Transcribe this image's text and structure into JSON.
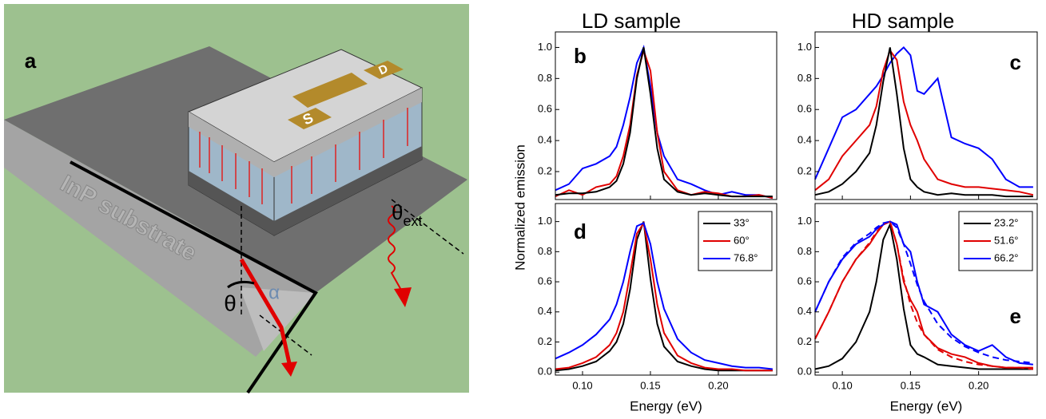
{
  "figure": {
    "column_titles": [
      "LD sample",
      "HD sample"
    ],
    "ylabel": "Normalized emission",
    "illustration": {
      "label": "a",
      "substrate": "InP substrate",
      "theta": "θ",
      "alpha": "α",
      "theta_ext": "θ",
      "theta_ext_sub": "ext",
      "pad_s": "S",
      "pad_d": "D"
    }
  },
  "chart_data": [
    {
      "type": "line",
      "label": "b",
      "xlim": [
        0.08,
        0.243
      ],
      "ylim": [
        0.02,
        1.1
      ],
      "xtick_labels": false,
      "xticks": [
        0.1,
        0.15,
        0.2
      ],
      "yticks": [
        0.2,
        0.4,
        0.6,
        0.8,
        {
          "value": 1,
          "label": "1.0"
        }
      ],
      "x": [
        0.08,
        0.09,
        0.1,
        0.11,
        0.12,
        0.125,
        0.13,
        0.135,
        0.14,
        0.145,
        0.15,
        0.155,
        0.16,
        0.17,
        0.18,
        0.19,
        0.2,
        0.21,
        0.22,
        0.23,
        0.24
      ],
      "series": [
        {
          "color": "#0000ff",
          "values": [
            0.08,
            0.12,
            0.22,
            0.25,
            0.3,
            0.36,
            0.5,
            0.68,
            0.9,
            1.0,
            0.75,
            0.45,
            0.3,
            0.15,
            0.12,
            0.08,
            0.05,
            0.07,
            0.05,
            0.05,
            0.03
          ]
        },
        {
          "color": "#e00000",
          "values": [
            0.04,
            0.08,
            0.05,
            0.1,
            0.12,
            0.17,
            0.3,
            0.5,
            0.82,
            0.98,
            0.85,
            0.45,
            0.2,
            0.08,
            0.05,
            0.07,
            0.06,
            0.04,
            0.04,
            0.05,
            0.03
          ]
        },
        {
          "color": "#000000",
          "values": [
            0.05,
            0.06,
            0.06,
            0.07,
            0.1,
            0.14,
            0.25,
            0.45,
            0.8,
            1.0,
            0.7,
            0.35,
            0.15,
            0.07,
            0.05,
            0.06,
            0.05,
            0.04,
            0.04,
            0.04,
            0.04
          ]
        }
      ]
    },
    {
      "type": "line",
      "label": "c",
      "xlim": [
        0.08,
        0.243
      ],
      "ylim": [
        0.02,
        1.1
      ],
      "xtick_labels": false,
      "xticks": [
        0.1,
        0.15,
        0.2
      ],
      "yticks": [
        0.2,
        0.4,
        0.6,
        0.8,
        {
          "value": 1,
          "label": "1.0"
        }
      ],
      "x": [
        0.08,
        0.09,
        0.1,
        0.11,
        0.12,
        0.125,
        0.13,
        0.135,
        0.14,
        0.145,
        0.15,
        0.155,
        0.16,
        0.17,
        0.18,
        0.19,
        0.2,
        0.21,
        0.22,
        0.23,
        0.24
      ],
      "series": [
        {
          "color": "#0000ff",
          "values": [
            0.15,
            0.35,
            0.55,
            0.6,
            0.7,
            0.75,
            0.82,
            0.9,
            0.96,
            1.0,
            0.95,
            0.72,
            0.7,
            0.8,
            0.42,
            0.38,
            0.35,
            0.28,
            0.15,
            0.1,
            0.1
          ]
        },
        {
          "color": "#e00000",
          "values": [
            0.08,
            0.15,
            0.3,
            0.4,
            0.5,
            0.62,
            0.85,
            0.98,
            0.92,
            0.65,
            0.5,
            0.4,
            0.28,
            0.15,
            0.12,
            0.1,
            0.1,
            0.09,
            0.08,
            0.07,
            0.05
          ]
        },
        {
          "color": "#000000",
          "values": [
            0.05,
            0.07,
            0.12,
            0.2,
            0.32,
            0.5,
            0.78,
            1.0,
            0.7,
            0.35,
            0.15,
            0.1,
            0.07,
            0.05,
            0.06,
            0.05,
            0.05,
            0.05,
            0.04,
            0.04,
            0.04
          ]
        }
      ]
    },
    {
      "type": "line",
      "label": "d",
      "xlabel": "Energy (eV)",
      "xlim": [
        0.08,
        0.243
      ],
      "ylim": [
        -0.02,
        1.12
      ],
      "xtick_labels": true,
      "legend": "upper right",
      "xticks": [
        {
          "value": 0.1,
          "label": "0.10"
        },
        0.15,
        {
          "value": 0.2,
          "label": "0.20"
        }
      ],
      "yticks": [
        {
          "value": 0,
          "label": "0.0"
        },
        0.2,
        0.4,
        0.6,
        0.8,
        {
          "value": 1,
          "label": "1.0"
        }
      ],
      "x": [
        0.08,
        0.09,
        0.1,
        0.11,
        0.12,
        0.125,
        0.13,
        0.135,
        0.14,
        0.145,
        0.15,
        0.155,
        0.16,
        0.17,
        0.18,
        0.19,
        0.2,
        0.21,
        0.22,
        0.23,
        0.24
      ],
      "series": [
        {
          "name": "33°",
          "color": "#000000",
          "values": [
            0.01,
            0.02,
            0.04,
            0.07,
            0.14,
            0.2,
            0.32,
            0.55,
            0.88,
            1.0,
            0.62,
            0.32,
            0.17,
            0.07,
            0.04,
            0.02,
            0.01,
            0.01,
            0.01,
            0.01,
            0.01
          ]
        },
        {
          "name": "60°",
          "color": "#e00000",
          "values": [
            0.02,
            0.03,
            0.06,
            0.1,
            0.18,
            0.26,
            0.4,
            0.65,
            0.92,
            0.99,
            0.75,
            0.45,
            0.26,
            0.11,
            0.06,
            0.03,
            0.02,
            0.02,
            0.01,
            0.01,
            0.01
          ]
        },
        {
          "name": "76.8°",
          "color": "#0000ff",
          "values": [
            0.09,
            0.13,
            0.18,
            0.25,
            0.35,
            0.45,
            0.6,
            0.8,
            0.97,
            0.99,
            0.85,
            0.6,
            0.42,
            0.22,
            0.13,
            0.08,
            0.06,
            0.04,
            0.03,
            0.03,
            0.02
          ]
        }
      ]
    },
    {
      "type": "line",
      "label": "e",
      "xlabel": "Energy (eV)",
      "xlim": [
        0.08,
        0.243
      ],
      "ylim": [
        -0.02,
        1.12
      ],
      "xtick_labels": true,
      "legend": "upper right",
      "xticks": [
        {
          "value": 0.1,
          "label": "0.10"
        },
        0.15,
        {
          "value": 0.2,
          "label": "0.20"
        }
      ],
      "yticks": [
        {
          "value": 0,
          "label": "0.0"
        },
        0.2,
        0.4,
        0.6,
        0.8,
        {
          "value": 1,
          "label": "1.0"
        }
      ],
      "x": [
        0.08,
        0.09,
        0.1,
        0.11,
        0.12,
        0.125,
        0.13,
        0.135,
        0.14,
        0.145,
        0.15,
        0.155,
        0.16,
        0.17,
        0.18,
        0.19,
        0.2,
        0.21,
        0.22,
        0.23,
        0.24
      ],
      "series": [
        {
          "name": "23.2°",
          "color": "#000000",
          "values": [
            0.02,
            0.04,
            0.09,
            0.2,
            0.4,
            0.6,
            0.88,
            0.98,
            0.75,
            0.42,
            0.18,
            0.12,
            0.1,
            0.05,
            0.04,
            0.03,
            0.02,
            0.02,
            0.02,
            0.02,
            0.02
          ]
        },
        {
          "name": "51.6°",
          "color": "#e00000",
          "values": [
            0.22,
            0.4,
            0.6,
            0.75,
            0.85,
            0.92,
            0.98,
            1.0,
            0.85,
            0.6,
            0.48,
            0.4,
            0.25,
            0.16,
            0.12,
            0.1,
            0.06,
            0.04,
            0.03,
            0.03,
            0.03
          ]
        },
        {
          "name": "66.2°",
          "color": "#0000ff",
          "values": [
            0.4,
            0.6,
            0.75,
            0.85,
            0.9,
            0.95,
            0.98,
            1.0,
            0.98,
            0.85,
            0.8,
            0.6,
            0.45,
            0.4,
            0.25,
            0.18,
            0.14,
            0.18,
            0.1,
            0.06,
            0.05
          ]
        },
        {
          "color": "#e00000",
          "dash": true,
          "values": [
            0.22,
            0.4,
            0.6,
            0.75,
            0.86,
            0.93,
            0.98,
            1.0,
            0.85,
            0.62,
            0.45,
            0.33,
            0.25,
            0.15,
            0.1,
            0.07,
            0.05,
            0.04,
            0.03,
            0.03,
            0.02
          ]
        },
        {
          "color": "#0000ff",
          "dash": true,
          "values": [
            0.4,
            0.6,
            0.76,
            0.86,
            0.92,
            0.96,
            0.99,
            1.0,
            0.96,
            0.85,
            0.72,
            0.58,
            0.47,
            0.32,
            0.23,
            0.17,
            0.13,
            0.1,
            0.08,
            0.07,
            0.06
          ]
        }
      ]
    }
  ]
}
